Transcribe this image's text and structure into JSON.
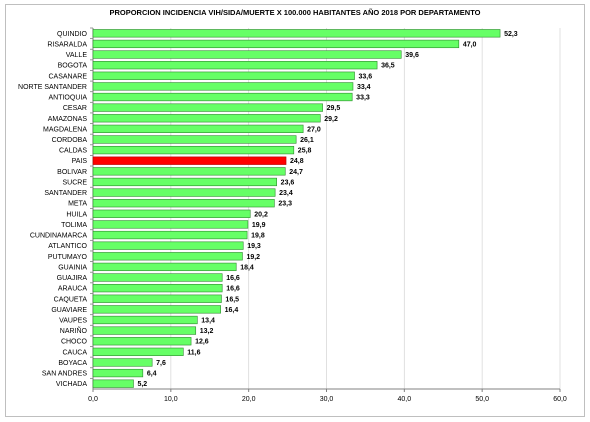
{
  "chart_data": {
    "type": "bar",
    "orientation": "horizontal",
    "title": "PROPORCION INCIDENCIA VIH/SIDA/MUERTE  X 100.000 HABITANTES AÑO 2018 POR DEPARTAMENTO",
    "xlim": [
      0,
      60
    ],
    "ticks": [
      "0,0",
      "10,0",
      "20,0",
      "30,0",
      "40,0",
      "50,0",
      "60,0"
    ],
    "tick_values": [
      0,
      10,
      20,
      30,
      40,
      50,
      60
    ],
    "grid": true,
    "colors": {
      "default": "#66ff66",
      "highlight": "#ff0000",
      "edge": "#2d8a2d",
      "highlight_edge": "#b00000"
    },
    "highlight_category": "PAIS",
    "categories": [
      "QUINDIO",
      "RISARALDA",
      "VALLE",
      "BOGOTA",
      "CASANARE",
      "NORTE SANTANDER",
      "ANTIOQUIA",
      "CESAR",
      "AMAZONAS",
      "MAGDALENA",
      "CORDOBA",
      "CALDAS",
      "PAIS",
      "BOLIVAR",
      "SUCRE",
      "SANTANDER",
      "META",
      "HUILA",
      "TOLIMA",
      "CUNDINAMARCA",
      "ATLANTICO",
      "PUTUMAYO",
      "GUAINIA",
      "GUAJIRA",
      "ARAUCA",
      "CAQUETA",
      "GUAVIARE",
      "VAUPES",
      "NARIÑO",
      "CHOCO",
      "CAUCA",
      "BOYACA",
      "SAN ANDRES",
      "VICHADA"
    ],
    "values": [
      52.3,
      47.0,
      39.6,
      36.5,
      33.6,
      33.4,
      33.3,
      29.5,
      29.2,
      27.0,
      26.1,
      25.8,
      24.8,
      24.7,
      23.6,
      23.4,
      23.3,
      20.2,
      19.9,
      19.8,
      19.3,
      19.2,
      18.4,
      16.6,
      16.6,
      16.5,
      16.4,
      13.4,
      13.2,
      12.6,
      11.6,
      7.6,
      6.4,
      5.2
    ],
    "value_labels": [
      "52,3",
      "47,0",
      "39,6",
      "36,5",
      "33,6",
      "33,4",
      "33,3",
      "29,5",
      "29,2",
      "27,0",
      "26,1",
      "25,8",
      "24,8",
      "24,7",
      "23,6",
      "23,4",
      "23,3",
      "20,2",
      "19,9",
      "19,8",
      "19,3",
      "19,2",
      "18,4",
      "16,6",
      "16,6",
      "16,5",
      "16,4",
      "13,4",
      "13,2",
      "12,6",
      "11,6",
      "7,6",
      "6,4",
      "5,2"
    ]
  }
}
